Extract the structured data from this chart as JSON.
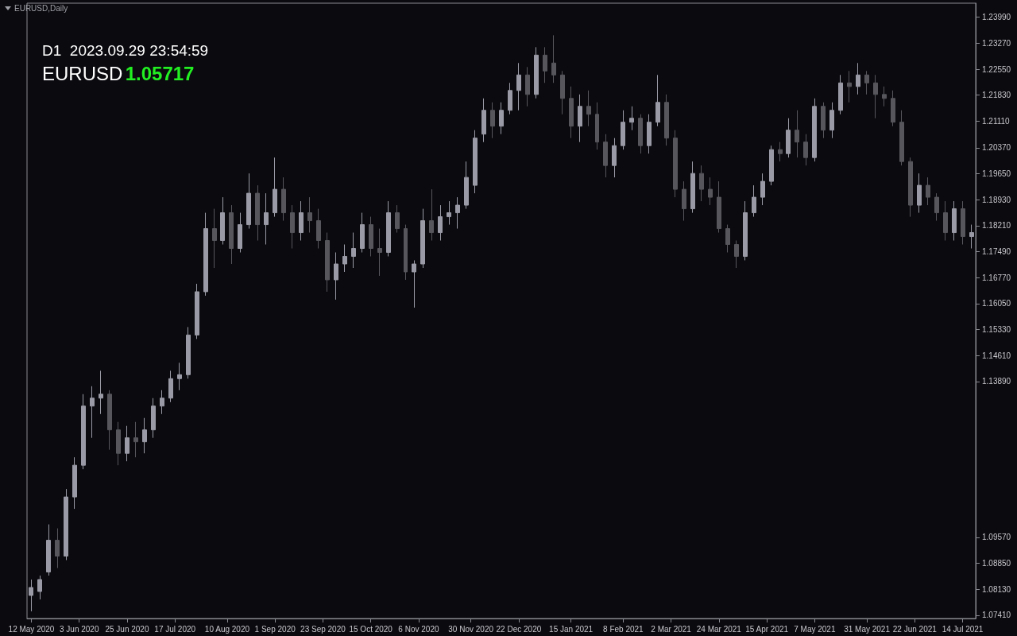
{
  "chart_data": {
    "type": "candlestick",
    "tick_labels": "xy",
    "grid": false,
    "colors": [
      "#9a9aa6",
      "#9a9aa6",
      "#9a9aa6",
      "#56565c",
      "#9a9aa6",
      "#9a9aa6",
      "#9a9aa6",
      "#9a9aa6",
      "#9a9aa6",
      "#56565c",
      "#56565c",
      "#9a9aa6",
      "#56565c",
      "#9a9aa6",
      "#9a9aa6",
      "#9a9aa6",
      "#9a9aa6",
      "#9a9aa6",
      "#9a9aa6",
      "#9a9aa6",
      "#9a9aa6",
      "#56565c",
      "#9a9aa6",
      "#56565c",
      "#9a9aa6",
      "#9a9aa6",
      "#56565c",
      "#9a9aa6",
      "#9a9aa6",
      "#56565c",
      "#56565c",
      "#9a9aa6",
      "#56565c",
      "#56565c",
      "#56565c",
      "#9a9aa6",
      "#9a9aa6",
      "#9a9aa6",
      "#9a9aa6",
      "#56565c",
      "#56565c",
      "#9a9aa6",
      "#56565c",
      "#56565c",
      "#9a9aa6",
      "#9a9aa6",
      "#56565c",
      "#9a9aa6",
      "#9a9aa6",
      "#9a9aa6",
      "#9a9aa6",
      "#9a9aa6",
      "#9a9aa6",
      "#56565c",
      "#9a9aa6",
      "#9a9aa6",
      "#9a9aa6",
      "#56565c",
      "#9a9aa6",
      "#56565c",
      "#56565c",
      "#56565c",
      "#56565c",
      "#9a9aa6",
      "#56565c",
      "#56565c",
      "#56565c",
      "#9a9aa6",
      "#9a9aa6",
      "#9a9aa6",
      "#56565c",
      "#9a9aa6",
      "#9a9aa6",
      "#56565c",
      "#56565c",
      "#56565c",
      "#9a9aa6",
      "#56565c",
      "#56565c",
      "#56565c",
      "#56565c",
      "#56565c",
      "#9a9aa6",
      "#9a9aa6",
      "#9a9aa6",
      "#9a9aa6",
      "#56565c",
      "#9a9aa6",
      "#56565c",
      "#56565c",
      "#9a9aa6",
      "#56565c",
      "#9a9aa6",
      "#9a9aa6",
      "#56565c",
      "#9a9aa6",
      "#56565c",
      "#56565c",
      "#56565c",
      "#56565c",
      "#56565c",
      "#56565c",
      "#9a9aa6",
      "#56565c",
      "#56565c",
      "#56565c",
      "#9a9aa6",
      "#56565c",
      "#9a9aa6"
    ],
    "annotations": [
      "EURUSD,Daily",
      "D1  2023.09.29 23:54:59",
      "EURUSD",
      "1.05717"
    ],
    "xlim": [
      "2020-05-10",
      "2021-07-20"
    ],
    "xticks": [
      {
        "value": "2020-05-12",
        "label": "12 May 2020"
      },
      {
        "value": "2020-06-03",
        "label": "3 Jun 2020"
      },
      {
        "value": "2020-06-25",
        "label": "25 Jun 2020"
      },
      {
        "value": "2020-07-17",
        "label": "17 Jul 2020"
      },
      {
        "value": "2020-08-10",
        "label": "10 Aug 2020"
      },
      {
        "value": "2020-09-01",
        "label": "1 Sep 2020"
      },
      {
        "value": "2020-09-23",
        "label": "23 Sep 2020"
      },
      {
        "value": "2020-10-15",
        "label": "15 Oct 2020"
      },
      {
        "value": "2020-11-06",
        "label": "6 Nov 2020"
      },
      {
        "value": "2020-11-30",
        "label": "30 Nov 2020"
      },
      {
        "value": "2020-12-22",
        "label": "22 Dec 2020"
      },
      {
        "value": "2021-01-15",
        "label": "15 Jan 2021"
      },
      {
        "value": "2021-02-08",
        "label": "8 Feb 2021"
      },
      {
        "value": "2021-03-02",
        "label": "2 Mar 2021"
      },
      {
        "value": "2021-03-24",
        "label": "24 Mar 2021"
      },
      {
        "value": "2021-04-15",
        "label": "15 Apr 2021"
      },
      {
        "value": "2021-05-07",
        "label": "7 May 2021"
      },
      {
        "value": "2021-05-31",
        "label": "31 May 2021"
      },
      {
        "value": "2021-06-22",
        "label": "22 Jun 2021"
      },
      {
        "value": "2021-07-14",
        "label": "14 Jul 2021"
      }
    ],
    "ylim": [
      1.0732,
      1.2438
    ],
    "yticks": [
      {
        "value": 1.0741,
        "label": "1.07410"
      },
      {
        "value": 1.0813,
        "label": "1.08130"
      },
      {
        "value": 1.0885,
        "label": "1.08850"
      },
      {
        "value": 1.0957,
        "label": "1.09570"
      },
      {
        "value": 1.1389,
        "label": "1.13890"
      },
      {
        "value": 1.1461,
        "label": "1.14610"
      },
      {
        "value": 1.1533,
        "label": "1.15330"
      },
      {
        "value": 1.1605,
        "label": "1.16050"
      },
      {
        "value": 1.1677,
        "label": "1.16770"
      },
      {
        "value": 1.1749,
        "label": "1.17490"
      },
      {
        "value": 1.1821,
        "label": "1.18210"
      },
      {
        "value": 1.1893,
        "label": "1.18930"
      },
      {
        "value": 1.1965,
        "label": "1.19650"
      },
      {
        "value": 1.2037,
        "label": "1.20370"
      },
      {
        "value": 1.2111,
        "label": "1.21110"
      },
      {
        "value": 1.2183,
        "label": "1.21830"
      },
      {
        "value": 1.2255,
        "label": "1.22550"
      },
      {
        "value": 1.2327,
        "label": "1.23270"
      },
      {
        "value": 1.2399,
        "label": "1.23990"
      }
    ],
    "x": [
      "2020-05-12",
      "2020-05-16",
      "2020-05-20",
      "2020-05-24",
      "2020-05-28",
      "2020-06-01",
      "2020-06-05",
      "2020-06-09",
      "2020-06-13",
      "2020-06-17",
      "2020-06-21",
      "2020-06-25",
      "2020-06-29",
      "2020-07-03",
      "2020-07-07",
      "2020-07-11",
      "2020-07-15",
      "2020-07-19",
      "2020-07-23",
      "2020-07-27",
      "2020-07-31",
      "2020-08-04",
      "2020-08-08",
      "2020-08-12",
      "2020-08-16",
      "2020-08-20",
      "2020-08-24",
      "2020-08-28",
      "2020-09-01",
      "2020-09-05",
      "2020-09-09",
      "2020-09-13",
      "2020-09-17",
      "2020-09-21",
      "2020-09-25",
      "2020-09-29",
      "2020-10-03",
      "2020-10-07",
      "2020-10-11",
      "2020-10-15",
      "2020-10-19",
      "2020-10-23",
      "2020-10-27",
      "2020-10-31",
      "2020-11-04",
      "2020-11-08",
      "2020-11-12",
      "2020-11-16",
      "2020-11-20",
      "2020-11-24",
      "2020-11-28",
      "2020-12-02",
      "2020-12-06",
      "2020-12-10",
      "2020-12-14",
      "2020-12-18",
      "2020-12-22",
      "2020-12-26",
      "2020-12-30",
      "2021-01-03",
      "2021-01-07",
      "2021-01-11",
      "2021-01-15",
      "2021-01-19",
      "2021-01-23",
      "2021-01-27",
      "2021-01-31",
      "2021-02-04",
      "2021-02-08",
      "2021-02-12",
      "2021-02-16",
      "2021-02-20",
      "2021-02-24",
      "2021-02-28",
      "2021-03-04",
      "2021-03-08",
      "2021-03-12",
      "2021-03-16",
      "2021-03-20",
      "2021-03-24",
      "2021-03-28",
      "2021-04-01",
      "2021-04-05",
      "2021-04-09",
      "2021-04-13",
      "2021-04-17",
      "2021-04-21",
      "2021-04-25",
      "2021-04-29",
      "2021-05-03",
      "2021-05-07",
      "2021-05-11",
      "2021-05-15",
      "2021-05-19",
      "2021-05-23",
      "2021-05-27",
      "2021-05-31",
      "2021-06-04",
      "2021-06-08",
      "2021-06-12",
      "2021-06-16",
      "2021-06-20",
      "2021-06-24",
      "2021-06-28",
      "2021-07-02",
      "2021-07-06",
      "2021-07-10",
      "2021-07-14",
      "2021-07-18"
    ],
    "ohlc": [
      [
        1.0796,
        1.084,
        1.0752,
        1.0818
      ],
      [
        1.0807,
        1.0851,
        1.0785,
        1.084
      ],
      [
        1.0861,
        1.0993,
        1.0851,
        1.0949
      ],
      [
        1.0949,
        1.0982,
        1.0872,
        1.0905
      ],
      [
        1.0905,
        1.1091,
        1.0894,
        1.1069
      ],
      [
        1.1069,
        1.1179,
        1.1036,
        1.1157
      ],
      [
        1.1157,
        1.1354,
        1.1146,
        1.1321
      ],
      [
        1.1321,
        1.1376,
        1.1233,
        1.1343
      ],
      [
        1.1343,
        1.1419,
        1.1299,
        1.1354
      ],
      [
        1.1354,
        1.1365,
        1.12,
        1.1255
      ],
      [
        1.1255,
        1.1277,
        1.1157,
        1.119
      ],
      [
        1.119,
        1.1266,
        1.1168,
        1.1233
      ],
      [
        1.1233,
        1.1277,
        1.1179,
        1.1222
      ],
      [
        1.1222,
        1.1288,
        1.119,
        1.1255
      ],
      [
        1.1255,
        1.1343,
        1.1233,
        1.1321
      ],
      [
        1.1321,
        1.1365,
        1.1299,
        1.1343
      ],
      [
        1.1343,
        1.1419,
        1.1332,
        1.1397
      ],
      [
        1.1397,
        1.1441,
        1.1365,
        1.1408
      ],
      [
        1.1408,
        1.154,
        1.1397,
        1.1518
      ],
      [
        1.1518,
        1.166,
        1.1507,
        1.1638
      ],
      [
        1.1638,
        1.1857,
        1.1627,
        1.1813
      ],
      [
        1.1813,
        1.1868,
        1.1704,
        1.178
      ],
      [
        1.178,
        1.19,
        1.1769,
        1.1857
      ],
      [
        1.1857,
        1.1878,
        1.1715,
        1.1758
      ],
      [
        1.1758,
        1.1857,
        1.1747,
        1.1824
      ],
      [
        1.1824,
        1.1966,
        1.1813,
        1.1911
      ],
      [
        1.1911,
        1.1933,
        1.178,
        1.1824
      ],
      [
        1.1824,
        1.1911,
        1.1769,
        1.1857
      ],
      [
        1.1857,
        1.201,
        1.1846,
        1.1922
      ],
      [
        1.1922,
        1.1955,
        1.1835,
        1.1857
      ],
      [
        1.1857,
        1.1878,
        1.1758,
        1.1802
      ],
      [
        1.1802,
        1.1889,
        1.178,
        1.1857
      ],
      [
        1.1857,
        1.19,
        1.1802,
        1.1835
      ],
      [
        1.1835,
        1.1868,
        1.1758,
        1.178
      ],
      [
        1.178,
        1.1802,
        1.1638,
        1.1671
      ],
      [
        1.1671,
        1.1747,
        1.1616,
        1.1715
      ],
      [
        1.1715,
        1.1769,
        1.1693,
        1.1736
      ],
      [
        1.1736,
        1.1802,
        1.1704,
        1.1758
      ],
      [
        1.1758,
        1.1857,
        1.1747,
        1.1824
      ],
      [
        1.1824,
        1.1846,
        1.1736,
        1.1758
      ],
      [
        1.1758,
        1.1813,
        1.1682,
        1.1747
      ],
      [
        1.1747,
        1.1889,
        1.1736,
        1.1857
      ],
      [
        1.1857,
        1.1878,
        1.1802,
        1.1813
      ],
      [
        1.1813,
        1.1824,
        1.1671,
        1.1693
      ],
      [
        1.1693,
        1.1725,
        1.1594,
        1.1715
      ],
      [
        1.1715,
        1.1868,
        1.1704,
        1.1835
      ],
      [
        1.1835,
        1.1922,
        1.178,
        1.1802
      ],
      [
        1.1802,
        1.1878,
        1.178,
        1.1846
      ],
      [
        1.1846,
        1.1889,
        1.1824,
        1.1857
      ],
      [
        1.1857,
        1.19,
        1.1813,
        1.1878
      ],
      [
        1.1878,
        1.1999,
        1.1868,
        1.1955
      ],
      [
        1.1933,
        1.2086,
        1.1911,
        1.2064
      ],
      [
        1.2075,
        1.2174,
        1.2053,
        1.2141
      ],
      [
        1.2141,
        1.2163,
        1.2064,
        1.2097
      ],
      [
        1.2097,
        1.2163,
        1.2075,
        1.2141
      ],
      [
        1.2141,
        1.2217,
        1.213,
        1.2196
      ],
      [
        1.2196,
        1.2272,
        1.2141,
        1.2239
      ],
      [
        1.2239,
        1.2261,
        1.2152,
        1.2185
      ],
      [
        1.2185,
        1.2316,
        1.2174,
        1.2294
      ],
      [
        1.2294,
        1.2316,
        1.2217,
        1.225
      ],
      [
        1.2272,
        1.2349,
        1.2217,
        1.2239
      ],
      [
        1.2239,
        1.225,
        1.213,
        1.2174
      ],
      [
        1.2174,
        1.2207,
        1.2064,
        1.2097
      ],
      [
        1.2097,
        1.2185,
        1.2053,
        1.2152
      ],
      [
        1.2152,
        1.2196,
        1.2097,
        1.213
      ],
      [
        1.213,
        1.2163,
        1.2032,
        1.2053
      ],
      [
        1.2053,
        1.2075,
        1.1955,
        1.1988
      ],
      [
        1.1988,
        1.2064,
        1.1955,
        1.2043
      ],
      [
        1.2043,
        1.2141,
        1.2032,
        1.2108
      ],
      [
        1.2108,
        1.2152,
        1.2086,
        1.2119
      ],
      [
        1.2119,
        1.213,
        1.2021,
        1.2043
      ],
      [
        1.2043,
        1.213,
        1.2021,
        1.2108
      ],
      [
        1.2108,
        1.2239,
        1.2097,
        1.2163
      ],
      [
        1.2163,
        1.2185,
        1.2043,
        1.2064
      ],
      [
        1.2064,
        1.2086,
        1.19,
        1.1922
      ],
      [
        1.1922,
        1.1944,
        1.1835,
        1.1868
      ],
      [
        1.1868,
        1.1999,
        1.1857,
        1.1966
      ],
      [
        1.1966,
        1.1988,
        1.1889,
        1.1922
      ],
      [
        1.1922,
        1.1955,
        1.1878,
        1.19
      ],
      [
        1.19,
        1.1944,
        1.1802,
        1.1813
      ],
      [
        1.1813,
        1.1824,
        1.1747,
        1.1769
      ],
      [
        1.1769,
        1.178,
        1.1704,
        1.1736
      ],
      [
        1.1736,
        1.1889,
        1.1725,
        1.1857
      ],
      [
        1.1857,
        1.1933,
        1.1846,
        1.19
      ],
      [
        1.19,
        1.1966,
        1.1878,
        1.1944
      ],
      [
        1.1944,
        1.2043,
        1.1933,
        1.2032
      ],
      [
        1.2032,
        1.2053,
        1.1999,
        1.2021
      ],
      [
        1.2021,
        1.2119,
        1.201,
        1.2086
      ],
      [
        1.2086,
        1.2141,
        1.201,
        1.2053
      ],
      [
        1.2053,
        1.2075,
        1.1988,
        1.201
      ],
      [
        1.201,
        1.2174,
        1.1999,
        1.2152
      ],
      [
        1.2152,
        1.2163,
        1.2064,
        1.2086
      ],
      [
        1.2086,
        1.2163,
        1.2064,
        1.2141
      ],
      [
        1.2141,
        1.2239,
        1.213,
        1.2217
      ],
      [
        1.2217,
        1.225,
        1.2163,
        1.2207
      ],
      [
        1.2207,
        1.2272,
        1.2185,
        1.2239
      ],
      [
        1.2239,
        1.225,
        1.2185,
        1.2217
      ],
      [
        1.2217,
        1.2239,
        1.2119,
        1.2185
      ],
      [
        1.2185,
        1.2207,
        1.2152,
        1.2174
      ],
      [
        1.2174,
        1.2196,
        1.2097,
        1.2108
      ],
      [
        1.2108,
        1.2141,
        1.1988,
        1.1999
      ],
      [
        1.1999,
        1.201,
        1.1846,
        1.1878
      ],
      [
        1.1878,
        1.1966,
        1.1857,
        1.1933
      ],
      [
        1.1933,
        1.1955,
        1.1878,
        1.19
      ],
      [
        1.19,
        1.1911,
        1.1835,
        1.1857
      ],
      [
        1.1857,
        1.1889,
        1.178,
        1.1802
      ],
      [
        1.1802,
        1.1889,
        1.178,
        1.1868
      ],
      [
        1.1868,
        1.1889,
        1.1769,
        1.1791
      ],
      [
        1.1791,
        1.1824,
        1.1758,
        1.1802
      ]
    ]
  }
}
